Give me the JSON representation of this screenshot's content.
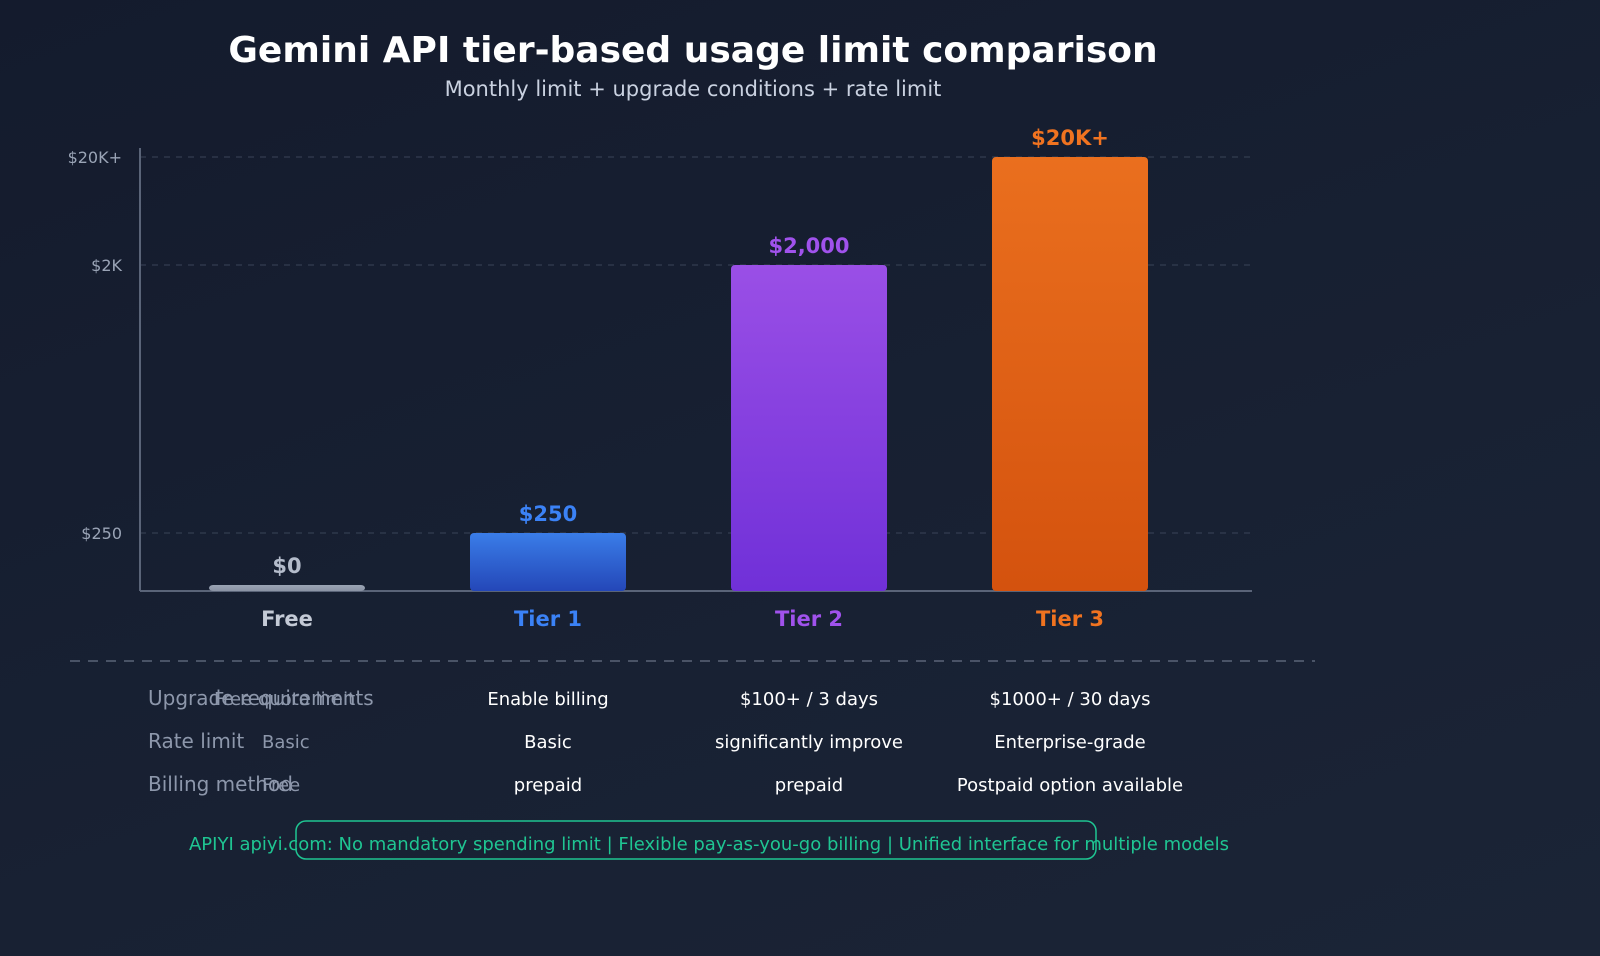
{
  "chart_data": {
    "type": "bar",
    "title": "Gemini API tier-based usage limit comparison",
    "subtitle": "Monthly limit + upgrade conditions + rate limit",
    "categories": [
      "Free",
      "Tier 1",
      "Tier 2",
      "Tier 3"
    ],
    "values": [
      0,
      250,
      2000,
      20000
    ],
    "value_labels": [
      "$0",
      "$250",
      "$2,000",
      "$20K+"
    ],
    "category_colors": [
      "#8a95a8",
      "#3b82f6",
      "#a052ec",
      "#f07320"
    ],
    "bar_colors_top": [
      "#9aa4b4",
      "#3a7de8",
      "#9a4fe6",
      "#ea6f1e"
    ],
    "bar_colors_bottom": [
      "#8a93a4",
      "#2447b8",
      "#7030d8",
      "#d4520e"
    ],
    "y_scale": "log",
    "yticks": [
      250,
      2000,
      20000
    ],
    "ytick_labels": [
      "$250",
      "$2K",
      "$20K+"
    ],
    "ylim": [
      50,
      20000
    ],
    "grid": true,
    "xlabel": "",
    "ylabel": ""
  },
  "table": {
    "row_headers": [
      "Upgrade requirements",
      "Rate limit",
      "Billing method"
    ],
    "free_column": [
      "Free quota limit",
      "Basic",
      "Free"
    ],
    "rows": [
      [
        "Enable billing",
        "$100+ / 3 days",
        "$1000+ / 30 days"
      ],
      [
        "Basic",
        "significantly improve",
        "Enterprise-grade"
      ],
      [
        "prepaid",
        "prepaid",
        "Postpaid option available"
      ]
    ]
  },
  "footer": {
    "text": "APIYI apiyi.com: No mandatory spending limit | Flexible pay-as-you-go billing | Unified interface for multiple models",
    "color": "#1fc592"
  }
}
